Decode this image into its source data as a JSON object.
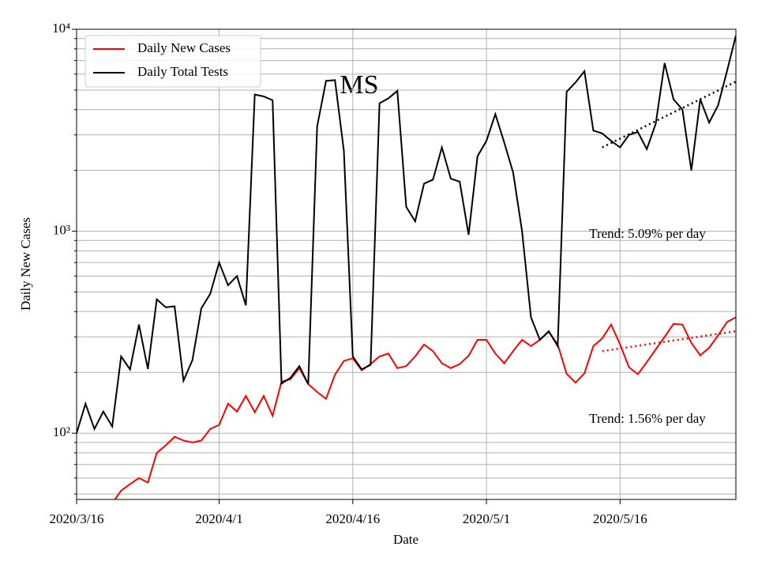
{
  "chart_data": {
    "type": "line",
    "title": "MS",
    "xlabel": "Date",
    "ylabel": "Daily New Cases",
    "log_y": true,
    "grid": true,
    "legend": "upper left",
    "x": [
      "2020/3/16",
      "2020/3/17",
      "2020/3/18",
      "2020/3/19",
      "2020/3/20",
      "2020/3/21",
      "2020/3/22",
      "2020/3/23",
      "2020/3/24",
      "2020/3/25",
      "2020/3/26",
      "2020/3/27",
      "2020/3/28",
      "2020/3/29",
      "2020/3/30",
      "2020/3/31",
      "2020/4/1",
      "2020/4/2",
      "2020/4/3",
      "2020/4/4",
      "2020/4/5",
      "2020/4/6",
      "2020/4/7",
      "2020/4/8",
      "2020/4/9",
      "2020/4/10",
      "2020/4/11",
      "2020/4/12",
      "2020/4/13",
      "2020/4/14",
      "2020/4/15",
      "2020/4/16",
      "2020/4/17",
      "2020/4/18",
      "2020/4/19",
      "2020/4/20",
      "2020/4/21",
      "2020/4/22",
      "2020/4/23",
      "2020/4/24",
      "2020/4/25",
      "2020/4/26",
      "2020/4/27",
      "2020/4/28",
      "2020/4/29",
      "2020/4/30",
      "2020/5/1",
      "2020/5/2",
      "2020/5/3",
      "2020/5/4",
      "2020/5/5",
      "2020/5/6",
      "2020/5/7",
      "2020/5/8",
      "2020/5/9",
      "2020/5/10",
      "2020/5/11",
      "2020/5/12",
      "2020/5/13",
      "2020/5/14",
      "2020/5/15",
      "2020/5/16",
      "2020/5/17",
      "2020/5/18",
      "2020/5/19",
      "2020/5/20",
      "2020/5/21",
      "2020/5/22",
      "2020/5/23",
      "2020/5/24",
      "2020/5/25",
      "2020/5/26",
      "2020/5/27",
      "2020/5/28",
      "2020/5/29"
    ],
    "series": [
      {
        "name": "Daily New Cases",
        "color": "#ff0000",
        "values": [
          null,
          null,
          null,
          null,
          45,
          52,
          56,
          60,
          57,
          80,
          87,
          96,
          92,
          90,
          92,
          105,
          110,
          140,
          128,
          153,
          127,
          153,
          122,
          180,
          185,
          210,
          175,
          160,
          148,
          195,
          228,
          235,
          205,
          220,
          240,
          248,
          210,
          215,
          240,
          275,
          255,
          222,
          210,
          220,
          242,
          290,
          290,
          248,
          222,
          255,
          290,
          270,
          290,
          318,
          275,
          197,
          178,
          198,
          270,
          295,
          345,
          275,
          212,
          196,
          225,
          260,
          300,
          348,
          345,
          280,
          243,
          265,
          305,
          355,
          375
        ]
      },
      {
        "name": "Daily Total Tests",
        "color": "#000000",
        "values": [
          100,
          140,
          105,
          128,
          108,
          240,
          207,
          345,
          208,
          460,
          420,
          425,
          182,
          230,
          415,
          490,
          700,
          540,
          600,
          430,
          4750,
          4650,
          4450,
          176,
          188,
          215,
          175,
          3300,
          5550,
          5600,
          2500,
          240,
          207,
          218,
          4300,
          4550,
          4950,
          1320,
          1120,
          1720,
          1800,
          2600,
          1820,
          1760,
          960,
          2350,
          2800,
          3800,
          2750,
          1950,
          1000,
          375,
          290,
          320,
          270,
          4900,
          5450,
          6200,
          3150,
          3050,
          2800,
          2600,
          3000,
          3100,
          2550,
          3400,
          6800,
          4500,
          4000,
          2000,
          4500,
          3450,
          4200,
          6200,
          9300
        ]
      }
    ],
    "trends": [
      {
        "color": "#ff0000",
        "x": [
          "2020/5/14",
          "2020/5/29"
        ],
        "values": [
          255,
          320
        ],
        "label": "Trend: 1.56% per day"
      },
      {
        "color": "#000000",
        "x": [
          "2020/5/14",
          "2020/5/29"
        ],
        "values": [
          2600,
          5500
        ],
        "label": "Trend: 5.09% per day"
      }
    ],
    "xlim": [
      "2020/3/16",
      "2020/5/29"
    ],
    "xticks": [
      "2020/3/16",
      "2020/4/1",
      "2020/4/16",
      "2020/5/1",
      "2020/5/16"
    ],
    "ylim": [
      47,
      10000
    ],
    "yticks": [
      {
        "value": 100,
        "label": "10²"
      },
      {
        "value": 1000,
        "label": "10³"
      },
      {
        "value": 10000,
        "label": "10⁴"
      }
    ],
    "yminor_ticks": [
      50,
      60,
      70,
      80,
      90,
      200,
      300,
      400,
      500,
      600,
      700,
      800,
      900,
      2000,
      3000,
      4000,
      5000,
      6000,
      7000,
      8000,
      9000
    ]
  }
}
